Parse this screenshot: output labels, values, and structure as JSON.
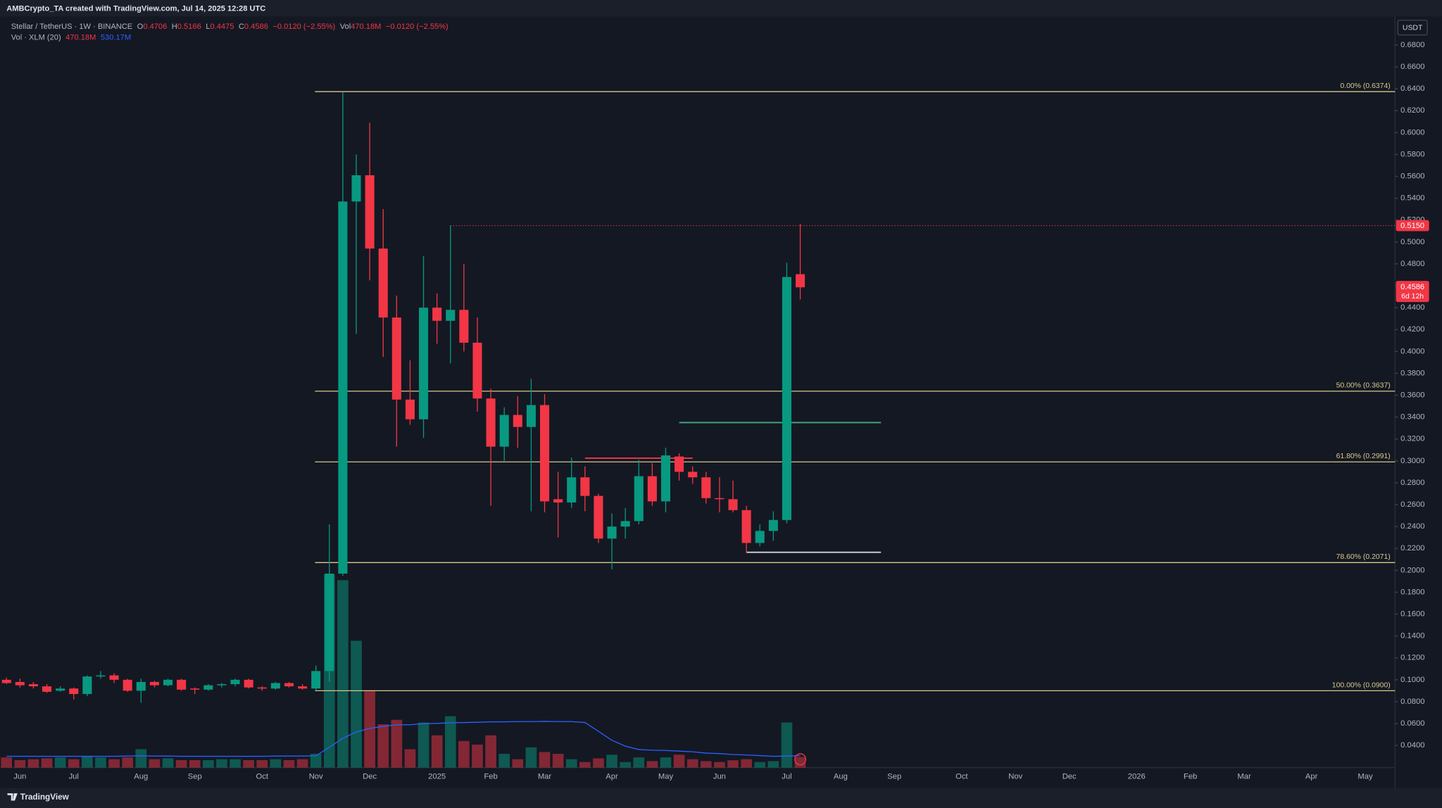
{
  "header": {
    "creator": "AMBCrypto_TA created with TradingView.com, Jul 14, 2025 12:28 UTC",
    "symbol": "Stellar / TetherUS · 1W · BINANCE",
    "o": "O",
    "h": "H",
    "l": "L",
    "c": "C",
    "change": "−0.0120 (−2.55%)",
    "vol_prefix": "Vol",
    "vol": "470.18M",
    "vol_change": "−0.0120 (−2.55%)",
    "vol_indicator": "Vol · XLM (20)",
    "vol_now": "470.18M",
    "vol_ma": "530.17M",
    "currency": "USDT",
    "countdown": "6d 12h",
    "footer": "TradingView"
  },
  "chart_data": {
    "type": "candlestick",
    "categories": [
      null,
      "Jun",
      null,
      null,
      null,
      "Jul",
      null,
      null,
      null,
      null,
      "Aug",
      null,
      null,
      null,
      "Sep",
      null,
      null,
      null,
      null,
      "Oct",
      null,
      null,
      null,
      "Nov",
      null,
      null,
      null,
      "Dec",
      null,
      null,
      null,
      null,
      "2025",
      null,
      null,
      null,
      "Feb",
      null,
      null,
      null,
      "Mar",
      null,
      null,
      null,
      null,
      "Apr",
      null,
      null,
      null,
      "May",
      null,
      null,
      null,
      "Jun",
      null,
      null,
      null,
      null,
      "Jul",
      null,
      null,
      null,
      "Aug",
      null,
      null,
      null,
      "Sep",
      null,
      null,
      null,
      null,
      "Oct",
      null,
      null,
      null,
      "Nov",
      null,
      null,
      null,
      "Dec",
      null,
      null,
      null,
      null,
      "2026",
      null,
      null,
      null,
      "Feb",
      null,
      null,
      null,
      "Mar",
      null,
      null,
      null,
      null,
      "Apr",
      null,
      null,
      null,
      "May",
      null,
      null
    ],
    "open": [
      0.1,
      0.098,
      0.096,
      0.094,
      0.09,
      0.092,
      0.087,
      0.103,
      0.104,
      0.1,
      0.09,
      0.098,
      0.095,
      0.1,
      0.092,
      0.091,
      0.095,
      0.096,
      0.1,
      0.093,
      0.092,
      0.097,
      0.094,
      0.092,
      0.108,
      0.197,
      0.537,
      0.561,
      0.494,
      0.431,
      0.356,
      0.338,
      0.44,
      0.428,
      0.438,
      0.408,
      0.357,
      0.313,
      0.342,
      0.331,
      0.351,
      0.265,
      0.262,
      0.285,
      0.268,
      0.229,
      0.24,
      0.245,
      0.286,
      0.263,
      0.304,
      0.29,
      0.285,
      0.266,
      0.265,
      0.255,
      0.225,
      0.236,
      0.246,
      0.4706,
      null,
      null,
      null,
      null,
      null,
      null,
      null,
      null,
      null,
      null,
      null,
      null,
      null,
      null,
      null,
      null,
      null,
      null,
      null,
      null,
      null,
      null,
      null,
      null,
      null,
      null,
      null,
      null,
      null,
      null,
      null,
      null,
      null,
      null,
      null,
      null,
      null,
      null,
      null,
      null,
      null,
      null,
      null,
      null
    ],
    "high": [
      0.102,
      0.101,
      0.098,
      0.096,
      0.094,
      0.093,
      0.104,
      0.108,
      0.106,
      0.101,
      0.101,
      0.099,
      0.101,
      0.101,
      0.093,
      0.096,
      0.097,
      0.101,
      0.101,
      0.094,
      0.098,
      0.098,
      0.096,
      0.113,
      0.242,
      0.637,
      0.58,
      0.609,
      0.53,
      0.451,
      0.392,
      0.487,
      0.453,
      0.515,
      0.48,
      0.431,
      0.366,
      0.349,
      0.359,
      0.375,
      0.361,
      0.29,
      0.303,
      0.295,
      0.27,
      0.252,
      0.257,
      0.301,
      0.298,
      0.312,
      0.307,
      0.295,
      0.29,
      0.285,
      0.282,
      0.259,
      0.242,
      0.254,
      0.481,
      0.5166,
      null,
      null,
      null,
      null,
      null,
      null,
      null,
      null,
      null,
      null,
      null,
      null,
      null,
      null,
      null,
      null,
      null,
      null,
      null,
      null,
      null,
      null,
      null,
      null,
      null,
      null,
      null,
      null,
      null,
      null,
      null,
      null,
      null,
      null,
      null,
      null,
      null,
      null,
      null,
      null,
      null,
      null,
      null,
      null
    ],
    "low": [
      0.096,
      0.093,
      0.092,
      0.088,
      0.089,
      0.082,
      0.085,
      0.101,
      0.097,
      0.089,
      0.079,
      0.093,
      0.094,
      0.09,
      0.087,
      0.09,
      0.093,
      0.094,
      0.092,
      0.09,
      0.091,
      0.093,
      0.091,
      0.09,
      0.098,
      0.195,
      0.416,
      0.465,
      0.395,
      0.313,
      0.333,
      0.321,
      0.407,
      0.389,
      0.4,
      0.345,
      0.259,
      0.3,
      0.312,
      0.254,
      0.253,
      0.23,
      0.257,
      0.254,
      0.225,
      0.201,
      0.229,
      0.242,
      0.259,
      0.253,
      0.282,
      0.279,
      0.261,
      0.253,
      0.253,
      0.216,
      0.222,
      0.227,
      0.243,
      0.4475,
      null,
      null,
      null,
      null,
      null,
      null,
      null,
      null,
      null,
      null,
      null,
      null,
      null,
      null,
      null,
      null,
      null,
      null,
      null,
      null,
      null,
      null,
      null,
      null,
      null,
      null,
      null,
      null,
      null,
      null,
      null,
      null,
      null,
      null,
      null,
      null,
      null,
      null,
      null,
      null,
      null,
      null,
      null,
      null
    ],
    "close": [
      0.097,
      0.095,
      0.094,
      0.089,
      0.092,
      0.087,
      0.103,
      0.104,
      0.1,
      0.09,
      0.098,
      0.095,
      0.1,
      0.091,
      0.091,
      0.095,
      0.096,
      0.1,
      0.093,
      0.092,
      0.097,
      0.094,
      0.092,
      0.108,
      0.197,
      0.537,
      0.561,
      0.494,
      0.431,
      0.356,
      0.338,
      0.44,
      0.428,
      0.438,
      0.408,
      0.357,
      0.313,
      0.342,
      0.331,
      0.351,
      0.263,
      0.262,
      0.285,
      0.268,
      0.229,
      0.24,
      0.245,
      0.286,
      0.263,
      0.305,
      0.29,
      0.285,
      0.266,
      0.265,
      0.255,
      0.225,
      0.236,
      0.246,
      0.468,
      0.4586,
      null,
      null,
      null,
      null,
      null,
      null,
      null,
      null,
      null,
      null,
      null,
      null,
      null,
      null,
      null,
      null,
      null,
      null,
      null,
      null,
      null,
      null,
      null,
      null,
      null,
      null,
      null,
      null,
      null,
      null,
      null,
      null,
      null,
      null,
      null,
      null,
      null,
      null,
      null,
      null,
      null,
      null,
      null,
      null
    ],
    "volume": [
      450,
      330,
      370,
      410,
      450,
      370,
      490,
      450,
      370,
      450,
      816,
      370,
      410,
      330,
      330,
      330,
      370,
      370,
      330,
      330,
      370,
      330,
      370,
      612,
      8570,
      8320,
      5630,
      3430,
      1920,
      2120,
      816,
      2000,
      1430,
      2280,
      1180,
      1020,
      1430,
      610,
      370,
      900,
      690,
      610,
      370,
      245,
      410,
      570,
      245,
      450,
      285,
      450,
      570,
      370,
      285,
      245,
      325,
      370,
      245,
      285,
      2000,
      470.18,
      null,
      null,
      null,
      null,
      null,
      null,
      null,
      null,
      null,
      null,
      null,
      null,
      null,
      null,
      null,
      null,
      null,
      null,
      null,
      null,
      null,
      null,
      null,
      null,
      null,
      null,
      null,
      null,
      null,
      null,
      null,
      null,
      null,
      null,
      null,
      null,
      null,
      null,
      null,
      null,
      null,
      null,
      null,
      null
    ],
    "volume_ma": [
      500,
      500,
      500,
      500,
      500,
      500,
      500,
      500,
      500,
      510,
      520,
      510,
      510,
      500,
      500,
      500,
      500,
      500,
      500,
      500,
      510,
      510,
      510,
      520,
      900,
      1300,
      1580,
      1740,
      1830,
      1900,
      1900,
      1950,
      1960,
      1990,
      2000,
      2010,
      2030,
      2030,
      2040,
      2040,
      2050,
      2040,
      2040,
      2000,
      1610,
      1210,
      950,
      800,
      770,
      760,
      730,
      700,
      640,
      620,
      580,
      560,
      530,
      500,
      510,
      530.17,
      null,
      null,
      null,
      null,
      null,
      null,
      null,
      null,
      null,
      null,
      null,
      null,
      null,
      null,
      null,
      null,
      null,
      null,
      null,
      null,
      null,
      null,
      null,
      null,
      null,
      null,
      null,
      null,
      null,
      null,
      null,
      null,
      null,
      null,
      null,
      null,
      null,
      null,
      null,
      null,
      null,
      null,
      null,
      null
    ],
    "up_color": "#089981",
    "down_color": "#f23645",
    "ma_color": "#2962ff",
    "ylim": [
      0.0198,
      0.706
    ],
    "yticks": [
      {
        "value": 0.04,
        "label": "0.0400"
      },
      {
        "value": 0.06,
        "label": "0.0600"
      },
      {
        "value": 0.08,
        "label": "0.0800"
      },
      {
        "value": 0.1,
        "label": "0.1000"
      },
      {
        "value": 0.12,
        "label": "0.1200"
      },
      {
        "value": 0.14,
        "label": "0.1400"
      },
      {
        "value": 0.16,
        "label": "0.1600"
      },
      {
        "value": 0.18,
        "label": "0.1800"
      },
      {
        "value": 0.2,
        "label": "0.2000"
      },
      {
        "value": 0.22,
        "label": "0.2200"
      },
      {
        "value": 0.24,
        "label": "0.2400"
      },
      {
        "value": 0.26,
        "label": "0.2600"
      },
      {
        "value": 0.28,
        "label": "0.2800"
      },
      {
        "value": 0.3,
        "label": "0.3000"
      },
      {
        "value": 0.32,
        "label": "0.3200"
      },
      {
        "value": 0.34,
        "label": "0.3400"
      },
      {
        "value": 0.36,
        "label": "0.3600"
      },
      {
        "value": 0.38,
        "label": "0.3800"
      },
      {
        "value": 0.4,
        "label": "0.4000"
      },
      {
        "value": 0.42,
        "label": "0.4200"
      },
      {
        "value": 0.44,
        "label": "0.4400"
      },
      {
        "value": 0.46,
        "label": "0.4600"
      },
      {
        "value": 0.48,
        "label": "0.4800"
      },
      {
        "value": 0.5,
        "label": "0.5000"
      },
      {
        "value": 0.52,
        "label": "0.5200"
      },
      {
        "value": 0.54,
        "label": "0.5400"
      },
      {
        "value": 0.56,
        "label": "0.5600"
      },
      {
        "value": 0.58,
        "label": "0.5800"
      },
      {
        "value": 0.6,
        "label": "0.6000"
      },
      {
        "value": 0.62,
        "label": "0.6200"
      },
      {
        "value": 0.64,
        "label": "0.6400"
      },
      {
        "value": 0.66,
        "label": "0.6600"
      },
      {
        "value": 0.68,
        "label": "0.6800"
      }
    ],
    "grid": false,
    "fib_levels": [
      {
        "label": "0.00% (0.6374)",
        "value": 0.6374
      },
      {
        "label": "50.00% (0.3637)",
        "value": 0.3637
      },
      {
        "label": "61.80% (0.2991)",
        "value": 0.2991
      },
      {
        "label": "78.60% (0.2071)",
        "value": 0.2071
      },
      {
        "label": "100.00% (0.0900)",
        "value": 0.09
      }
    ],
    "fib_color": "#d6c98a",
    "high_line": {
      "value": 0.515,
      "label": "0.5150"
    },
    "drawings": [
      {
        "price": 0.335,
        "color": "#3fa37a"
      },
      {
        "price": 0.3025,
        "color": "#f23645"
      },
      {
        "price": 0.2165,
        "color": "#d1d4dc"
      }
    ]
  }
}
